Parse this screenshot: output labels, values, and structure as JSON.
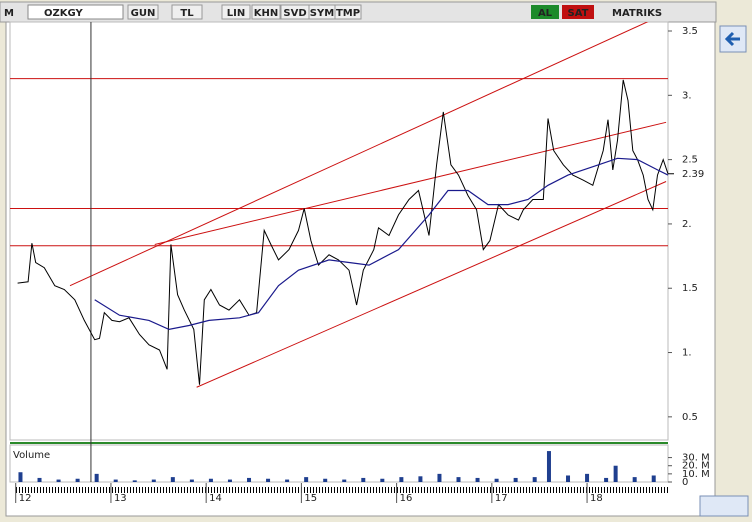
{
  "toolbar": {
    "logo": "M",
    "symbol": "OZKGY",
    "buttons": [
      "GUN",
      "TL",
      "LIN",
      "KHN",
      "SVD",
      "SYM",
      "TMP"
    ],
    "buy": "AL",
    "sell": "SAT",
    "brand": "MATRIKS"
  },
  "chart_data": [
    {
      "type": "line",
      "xlim": [
        11.94,
        18.85
      ],
      "xticks": [
        12,
        13,
        14,
        15,
        16,
        17,
        18
      ],
      "ylim": [
        0.32,
        3.57
      ],
      "yticks": [
        0.5,
        {
          "value": 1,
          "label": "1."
        },
        1.5,
        {
          "value": 2,
          "label": "2."
        },
        2.5,
        {
          "value": 3,
          "label": "3."
        },
        3.5
      ],
      "last_value": 2.39,
      "series": [
        {
          "color": "#000000",
          "x": [
            12.02,
            12.13,
            12.17,
            12.21,
            12.3,
            12.41,
            12.51,
            12.62,
            12.72,
            12.83,
            12.88,
            12.93,
            13.01,
            13.09,
            13.19,
            13.3,
            13.4,
            13.51,
            13.59,
            13.63,
            13.7,
            13.77,
            13.87,
            13.93,
            13.98,
            14.05,
            14.14,
            14.24,
            14.35,
            14.45,
            14.53,
            14.61,
            14.68,
            14.76,
            14.87,
            14.97,
            15.03,
            15.1,
            15.18,
            15.29,
            15.39,
            15.5,
            15.58,
            15.65,
            15.76,
            15.81,
            15.92,
            16.02,
            16.13,
            16.23,
            16.34,
            16.42,
            16.49,
            16.57,
            16.65,
            16.75,
            16.84,
            16.91,
            16.98,
            17.07,
            17.17,
            17.28,
            17.33,
            17.43,
            17.54,
            17.59,
            17.65,
            17.75,
            17.85,
            17.96,
            18.06,
            18.17,
            18.22,
            18.27,
            18.32,
            18.38,
            18.43,
            18.48,
            18.53,
            18.59,
            18.64,
            18.69,
            18.74,
            18.8,
            18.85
          ],
          "values": [
            1.54,
            1.55,
            1.85,
            1.7,
            1.66,
            1.52,
            1.49,
            1.41,
            1.25,
            1.1,
            1.11,
            1.31,
            1.25,
            1.24,
            1.27,
            1.14,
            1.06,
            1.02,
            0.87,
            1.84,
            1.45,
            1.33,
            1.18,
            0.75,
            1.41,
            1.49,
            1.37,
            1.33,
            1.41,
            1.29,
            1.31,
            1.95,
            1.84,
            1.72,
            1.8,
            1.95,
            2.12,
            1.87,
            1.68,
            1.76,
            1.72,
            1.64,
            1.37,
            1.64,
            1.8,
            1.97,
            1.91,
            2.07,
            2.19,
            2.26,
            1.91,
            2.46,
            2.87,
            2.46,
            2.38,
            2.22,
            2.11,
            1.8,
            1.87,
            2.15,
            2.07,
            2.03,
            2.11,
            2.19,
            2.19,
            2.82,
            2.57,
            2.46,
            2.38,
            2.34,
            2.3,
            2.57,
            2.81,
            2.42,
            2.65,
            3.12,
            2.96,
            2.57,
            2.5,
            2.38,
            2.19,
            2.11,
            2.38,
            2.5,
            2.39
          ]
        },
        {
          "color": "#1a1a8c",
          "x": [
            12.83,
            13.09,
            13.4,
            13.61,
            13.82,
            14.03,
            14.35,
            14.55,
            14.76,
            14.97,
            15.29,
            15.5,
            15.71,
            16.02,
            16.34,
            16.54,
            16.75,
            16.96,
            17.17,
            17.38,
            17.59,
            17.8,
            18.12,
            18.32,
            18.53,
            18.74,
            18.85
          ],
          "values": [
            1.41,
            1.29,
            1.25,
            1.18,
            1.21,
            1.25,
            1.27,
            1.31,
            1.52,
            1.64,
            1.72,
            1.7,
            1.68,
            1.8,
            2.07,
            2.26,
            2.26,
            2.15,
            2.15,
            2.19,
            2.3,
            2.38,
            2.46,
            2.51,
            2.5,
            2.42,
            2.38
          ]
        }
      ],
      "trend_color": "#cc1111",
      "trend_lines": [
        {
          "x": [
            12.57,
            18.69
          ],
          "values": [
            1.52,
            3.59
          ]
        },
        {
          "x": [
            13.46,
            18.83
          ],
          "values": [
            1.84,
            2.79
          ]
        },
        {
          "x": [
            13.9,
            18.83
          ],
          "values": [
            0.73,
            2.33
          ]
        }
      ],
      "hlines": [
        3.13,
        2.12,
        1.83
      ],
      "cursor_x": 12.79
    },
    {
      "type": "bar",
      "title": "Volume",
      "color": "#1f3f8f",
      "ylim": [
        0,
        43000000
      ],
      "yticks": [
        0,
        {
          "value": 10000000,
          "label": "10. M"
        },
        {
          "value": 20000000,
          "label": "20. M"
        },
        {
          "value": 30000000,
          "label": "30. M"
        }
      ],
      "x": [
        12.05,
        12.25,
        12.45,
        12.65,
        12.85,
        13.05,
        13.25,
        13.45,
        13.65,
        13.85,
        14.05,
        14.25,
        14.45,
        14.65,
        14.85,
        15.05,
        15.25,
        15.45,
        15.65,
        15.85,
        16.05,
        16.25,
        16.45,
        16.65,
        16.85,
        17.05,
        17.25,
        17.45,
        17.6,
        17.8,
        18.0,
        18.2,
        18.3,
        18.5,
        18.7
      ],
      "values": [
        12000000,
        5000000,
        3000000,
        4000000,
        10000000,
        3000000,
        2000000,
        3000000,
        6000000,
        3000000,
        4000000,
        3000000,
        5000000,
        4000000,
        3000000,
        6000000,
        4000000,
        3000000,
        5000000,
        4000000,
        6000000,
        7000000,
        10000000,
        6000000,
        5000000,
        4000000,
        5000000,
        6000000,
        38000000,
        8000000,
        10000000,
        5000000,
        20000000,
        6000000,
        8000000
      ]
    }
  ]
}
